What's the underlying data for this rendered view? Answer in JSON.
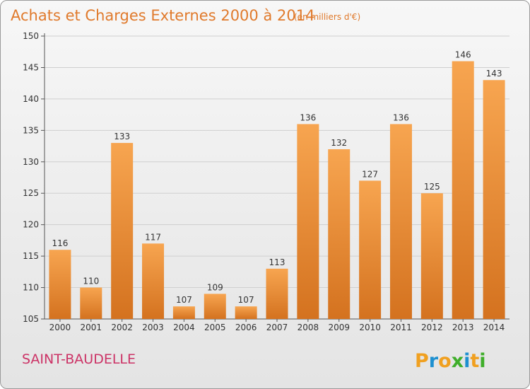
{
  "chart_data": {
    "type": "bar",
    "title": "Achats et Charges Externes 2000 à 2014",
    "subtitle": "(en milliers d'€)",
    "categories": [
      "2000",
      "2001",
      "2002",
      "2003",
      "2004",
      "2005",
      "2006",
      "2007",
      "2008",
      "2009",
      "2010",
      "2011",
      "2012",
      "2013",
      "2014"
    ],
    "values": [
      116,
      110,
      133,
      117,
      107,
      109,
      107,
      113,
      136,
      132,
      127,
      136,
      125,
      146,
      143
    ],
    "ylim": [
      105,
      150
    ],
    "yticks": [
      105,
      110,
      115,
      120,
      125,
      130,
      135,
      140,
      145,
      150
    ],
    "grid": "horizontal",
    "bar_color_top": "#f7a550",
    "bar_color_bottom": "#d4721f"
  },
  "location": "SAINT-BAUDELLE",
  "brand": {
    "name": "Proxiti",
    "letters": [
      "P",
      "r",
      "o",
      "x",
      "i",
      "t",
      "i"
    ],
    "letter_colors": [
      "#f0a020",
      "#1e90d0",
      "#f0a020",
      "#3fae2a",
      "#1e90d0",
      "#f0a020",
      "#3fae2a"
    ]
  }
}
